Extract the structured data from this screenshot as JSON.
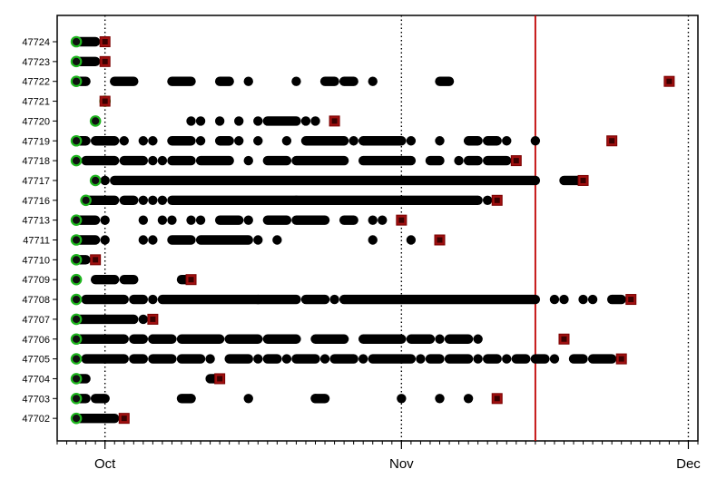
{
  "chart_data": {
    "type": "scatter",
    "x_axis": {
      "type": "date",
      "min": "2022-09-26",
      "max": "2022-12-02",
      "tick_labels": [
        {
          "date": "2022-10-01",
          "label": "Oct"
        },
        {
          "date": "2022-11-01",
          "label": "Nov"
        },
        {
          "date": "2022-12-01",
          "label": "Dec"
        }
      ],
      "gridlines": "dotted at month starts"
    },
    "marker_legend": {
      "start": "green circle",
      "observation": "black dot",
      "end": "red square"
    },
    "reference_line": {
      "date": "2022-11-15",
      "color": "#c00000"
    },
    "categories": [
      "47724",
      "47723",
      "47722",
      "47721",
      "47720",
      "47719",
      "47718",
      "47717",
      "47716",
      "47713",
      "47711",
      "47710",
      "47709",
      "47708",
      "47707",
      "47706",
      "47705",
      "47704",
      "47703",
      "47702"
    ],
    "series": [
      {
        "id": "47724",
        "start": "2022-09-28",
        "end": "2022-10-01",
        "segments": [
          [
            "2022-09-28",
            "2022-09-30"
          ]
        ],
        "points": []
      },
      {
        "id": "47723",
        "start": "2022-09-28",
        "end": "2022-10-01",
        "segments": [
          [
            "2022-09-28",
            "2022-09-30"
          ]
        ],
        "points": []
      },
      {
        "id": "47722",
        "start": "2022-09-28",
        "end": "2022-11-29",
        "segments": [
          [
            "2022-09-28",
            "2022-09-29"
          ],
          [
            "2022-10-02",
            "2022-10-04"
          ],
          [
            "2022-10-08",
            "2022-10-10"
          ],
          [
            "2022-10-13",
            "2022-10-14"
          ],
          [
            "2022-10-24",
            "2022-10-25"
          ],
          [
            "2022-10-26",
            "2022-10-27"
          ],
          [
            "2022-11-05",
            "2022-11-06"
          ]
        ],
        "points": [
          "2022-10-16",
          "2022-10-21",
          "2022-10-29"
        ]
      },
      {
        "id": "47721",
        "start": "2022-10-01",
        "end": "2022-10-01",
        "segments": [],
        "points": []
      },
      {
        "id": "47720",
        "start": "2022-09-30",
        "end": "2022-10-25",
        "segments": [
          [
            "2022-10-18",
            "2022-10-21"
          ]
        ],
        "points": [
          "2022-10-10",
          "2022-10-11",
          "2022-10-13",
          "2022-10-15",
          "2022-10-17",
          "2022-10-22",
          "2022-10-23"
        ]
      },
      {
        "id": "47719",
        "start": "2022-09-28",
        "end": "2022-11-23",
        "segments": [
          [
            "2022-09-28",
            "2022-09-29"
          ],
          [
            "2022-09-30",
            "2022-10-02"
          ],
          [
            "2022-10-08",
            "2022-10-10"
          ],
          [
            "2022-10-13",
            "2022-10-14"
          ],
          [
            "2022-10-22",
            "2022-10-26"
          ],
          [
            "2022-10-28",
            "2022-11-01"
          ],
          [
            "2022-11-08",
            "2022-11-09"
          ],
          [
            "2022-11-10",
            "2022-11-11"
          ]
        ],
        "points": [
          "2022-10-03",
          "2022-10-05",
          "2022-10-06",
          "2022-10-11",
          "2022-10-15",
          "2022-10-17",
          "2022-10-20",
          "2022-10-27",
          "2022-11-02",
          "2022-11-05",
          "2022-11-12",
          "2022-11-15"
        ]
      },
      {
        "id": "47718",
        "start": "2022-09-28",
        "end": "2022-11-13",
        "segments": [
          [
            "2022-09-29",
            "2022-10-02"
          ],
          [
            "2022-10-03",
            "2022-10-05"
          ],
          [
            "2022-10-08",
            "2022-10-10"
          ],
          [
            "2022-10-11",
            "2022-10-14"
          ],
          [
            "2022-10-18",
            "2022-10-20"
          ],
          [
            "2022-10-21",
            "2022-10-26"
          ],
          [
            "2022-10-28",
            "2022-11-02"
          ],
          [
            "2022-11-04",
            "2022-11-05"
          ],
          [
            "2022-11-08",
            "2022-11-09"
          ],
          [
            "2022-11-10",
            "2022-11-12"
          ]
        ],
        "points": [
          "2022-10-06",
          "2022-10-07",
          "2022-10-16",
          "2022-11-07"
        ]
      },
      {
        "id": "47717",
        "start": "2022-09-30",
        "end": "2022-11-20",
        "segments": [
          [
            "2022-10-02",
            "2022-11-15"
          ],
          [
            "2022-11-18",
            "2022-11-20"
          ]
        ],
        "points": [
          "2022-10-01"
        ]
      },
      {
        "id": "47716",
        "start": "2022-09-29",
        "end": "2022-11-11",
        "segments": [
          [
            "2022-09-29",
            "2022-10-02"
          ],
          [
            "2022-10-03",
            "2022-10-04"
          ],
          [
            "2022-10-08",
            "2022-10-21"
          ],
          [
            "2022-10-21",
            "2022-11-01"
          ],
          [
            "2022-11-01",
            "2022-11-09"
          ]
        ],
        "points": [
          "2022-10-05",
          "2022-10-06",
          "2022-10-07",
          "2022-11-10"
        ]
      },
      {
        "id": "47713",
        "start": "2022-09-28",
        "end": "2022-11-01",
        "segments": [
          [
            "2022-09-28",
            "2022-09-30"
          ],
          [
            "2022-10-13",
            "2022-10-15"
          ],
          [
            "2022-10-18",
            "2022-10-20"
          ],
          [
            "2022-10-21",
            "2022-10-24"
          ],
          [
            "2022-10-26",
            "2022-10-27"
          ]
        ],
        "points": [
          "2022-10-01",
          "2022-10-05",
          "2022-10-07",
          "2022-10-08",
          "2022-10-10",
          "2022-10-11",
          "2022-10-16",
          "2022-10-29",
          "2022-10-30",
          "2022-11-01"
        ]
      },
      {
        "id": "47711",
        "start": "2022-09-28",
        "end": "2022-11-05",
        "segments": [
          [
            "2022-09-28",
            "2022-09-30"
          ],
          [
            "2022-10-08",
            "2022-10-10"
          ],
          [
            "2022-10-11",
            "2022-10-16"
          ]
        ],
        "points": [
          "2022-10-01",
          "2022-10-05",
          "2022-10-06",
          "2022-10-17",
          "2022-10-19",
          "2022-10-29",
          "2022-11-02"
        ]
      },
      {
        "id": "47710",
        "start": "2022-09-28",
        "end": "2022-09-30",
        "segments": [
          [
            "2022-09-28",
            "2022-09-29"
          ]
        ],
        "points": []
      },
      {
        "id": "47709",
        "start": "2022-09-28",
        "end": "2022-10-10",
        "segments": [
          [
            "2022-09-30",
            "2022-10-02"
          ],
          [
            "2022-10-03",
            "2022-10-04"
          ],
          [
            "2022-10-09",
            "2022-10-10"
          ]
        ],
        "points": []
      },
      {
        "id": "47708",
        "start": "2022-09-28",
        "end": "2022-11-25",
        "segments": [
          [
            "2022-09-29",
            "2022-10-01"
          ],
          [
            "2022-10-01",
            "2022-10-03"
          ],
          [
            "2022-10-04",
            "2022-10-05"
          ],
          [
            "2022-10-07",
            "2022-10-21"
          ],
          [
            "2022-10-22",
            "2022-10-24"
          ],
          [
            "2022-10-26",
            "2022-11-15"
          ],
          [
            "2022-11-23",
            "2022-11-24"
          ]
        ],
        "points": [
          "2022-10-06",
          "2022-10-17",
          "2022-10-25",
          "2022-11-17",
          "2022-11-18",
          "2022-11-20",
          "2022-11-21"
        ]
      },
      {
        "id": "47707",
        "start": "2022-09-28",
        "end": "2022-10-06",
        "segments": [
          [
            "2022-09-28",
            "2022-10-04"
          ]
        ],
        "points": [
          "2022-10-05"
        ]
      },
      {
        "id": "47706",
        "start": "2022-09-28",
        "end": "2022-11-18",
        "segments": [
          [
            "2022-09-28",
            "2022-10-03"
          ],
          [
            "2022-10-04",
            "2022-10-05"
          ],
          [
            "2022-10-06",
            "2022-10-08"
          ],
          [
            "2022-10-09",
            "2022-10-13"
          ],
          [
            "2022-10-14",
            "2022-10-17"
          ],
          [
            "2022-10-18",
            "2022-10-21"
          ],
          [
            "2022-10-23",
            "2022-10-26"
          ],
          [
            "2022-10-28",
            "2022-11-01"
          ],
          [
            "2022-11-02",
            "2022-11-04"
          ],
          [
            "2022-11-06",
            "2022-11-08"
          ]
        ],
        "points": [
          "2022-10-06",
          "2022-11-05",
          "2022-11-09"
        ]
      },
      {
        "id": "47705",
        "start": "2022-09-28",
        "end": "2022-11-24",
        "segments": [
          [
            "2022-09-29",
            "2022-10-01"
          ],
          [
            "2022-10-01",
            "2022-10-03"
          ],
          [
            "2022-10-04",
            "2022-10-05"
          ],
          [
            "2022-10-06",
            "2022-10-08"
          ],
          [
            "2022-10-09",
            "2022-10-11"
          ],
          [
            "2022-10-14",
            "2022-10-16"
          ],
          [
            "2022-10-18",
            "2022-10-19"
          ],
          [
            "2022-10-21",
            "2022-10-23"
          ],
          [
            "2022-10-25",
            "2022-10-27"
          ],
          [
            "2022-10-29",
            "2022-11-01"
          ],
          [
            "2022-11-01",
            "2022-11-02"
          ],
          [
            "2022-11-04",
            "2022-11-05"
          ],
          [
            "2022-11-06",
            "2022-11-08"
          ],
          [
            "2022-11-10",
            "2022-11-11"
          ],
          [
            "2022-11-13",
            "2022-11-14"
          ],
          [
            "2022-11-15",
            "2022-11-16"
          ],
          [
            "2022-11-19",
            "2022-11-20"
          ],
          [
            "2022-11-21",
            "2022-11-23"
          ]
        ],
        "points": [
          "2022-10-12",
          "2022-10-17",
          "2022-10-20",
          "2022-10-24",
          "2022-10-28",
          "2022-11-03",
          "2022-11-09",
          "2022-11-12",
          "2022-11-17"
        ]
      },
      {
        "id": "47704",
        "start": "2022-09-28",
        "end": "2022-10-13",
        "segments": [
          [
            "2022-09-28",
            "2022-09-29"
          ],
          [
            "2022-10-12",
            "2022-10-13"
          ]
        ],
        "points": []
      },
      {
        "id": "47703",
        "start": "2022-09-28",
        "end": "2022-11-11",
        "segments": [
          [
            "2022-09-28",
            "2022-09-29"
          ],
          [
            "2022-09-30",
            "2022-10-01"
          ],
          [
            "2022-10-09",
            "2022-10-10"
          ],
          [
            "2022-10-23",
            "2022-10-24"
          ]
        ],
        "points": [
          "2022-10-10",
          "2022-10-16",
          "2022-10-23",
          "2022-11-01",
          "2022-11-05",
          "2022-11-08"
        ]
      },
      {
        "id": "47702",
        "start": "2022-09-28",
        "end": "2022-10-03",
        "segments": [
          [
            "2022-09-28",
            "2022-10-02"
          ]
        ],
        "points": []
      }
    ]
  }
}
